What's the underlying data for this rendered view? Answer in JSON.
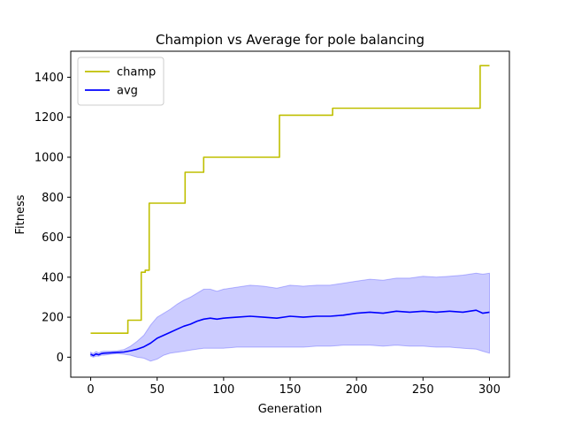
{
  "chart_data": {
    "type": "line",
    "title": "Champion vs Average for pole balancing",
    "xlabel": "Generation",
    "ylabel": "Fitness",
    "xlim": [
      -15,
      315
    ],
    "ylim": [
      -100,
      1530
    ],
    "xticks": [
      0,
      50,
      100,
      150,
      200,
      250,
      300
    ],
    "yticks": [
      0,
      200,
      400,
      600,
      800,
      1000,
      1200,
      1400
    ],
    "grid": false,
    "legend": "top-left",
    "series": [
      {
        "name": "champ",
        "color": "#bfbf00",
        "x": [
          0,
          28,
          28,
          35,
          35,
          38,
          38,
          41,
          41,
          44,
          44,
          71,
          71,
          85,
          85,
          142,
          142,
          182,
          182,
          293,
          293,
          300
        ],
        "y": [
          120,
          120,
          185,
          185,
          185,
          185,
          425,
          425,
          435,
          435,
          770,
          770,
          925,
          925,
          1000,
          1000,
          1210,
          1210,
          1245,
          1245,
          1458,
          1458
        ]
      },
      {
        "name": "avg",
        "color": "#0000ff",
        "band_color": "#0000ff",
        "x": [
          0,
          2,
          4,
          6,
          8,
          10,
          15,
          20,
          25,
          30,
          35,
          40,
          45,
          50,
          55,
          60,
          65,
          70,
          75,
          80,
          85,
          90,
          95,
          100,
          110,
          120,
          130,
          140,
          150,
          160,
          170,
          180,
          190,
          200,
          210,
          220,
          230,
          240,
          250,
          260,
          270,
          280,
          290,
          295,
          300
        ],
        "y": [
          15,
          8,
          16,
          12,
          18,
          20,
          22,
          24,
          26,
          32,
          40,
          52,
          70,
          95,
          110,
          125,
          140,
          155,
          165,
          180,
          190,
          195,
          190,
          195,
          200,
          205,
          200,
          195,
          205,
          200,
          205,
          205,
          210,
          220,
          225,
          220,
          230,
          225,
          230,
          225,
          230,
          225,
          235,
          220,
          225
        ],
        "lower": [
          5,
          0,
          5,
          5,
          10,
          10,
          15,
          18,
          15,
          10,
          0,
          -5,
          -20,
          -10,
          10,
          20,
          25,
          30,
          35,
          40,
          45,
          45,
          45,
          45,
          50,
          50,
          50,
          50,
          50,
          50,
          55,
          55,
          60,
          60,
          60,
          55,
          60,
          55,
          55,
          50,
          50,
          45,
          40,
          30,
          20
        ],
        "upper": [
          25,
          18,
          28,
          22,
          28,
          30,
          30,
          32,
          38,
          55,
          80,
          110,
          160,
          200,
          220,
          240,
          265,
          285,
          300,
          320,
          340,
          340,
          330,
          340,
          350,
          360,
          355,
          345,
          360,
          355,
          360,
          360,
          370,
          380,
          390,
          385,
          395,
          395,
          405,
          400,
          405,
          410,
          420,
          415,
          420
        ]
      }
    ]
  }
}
